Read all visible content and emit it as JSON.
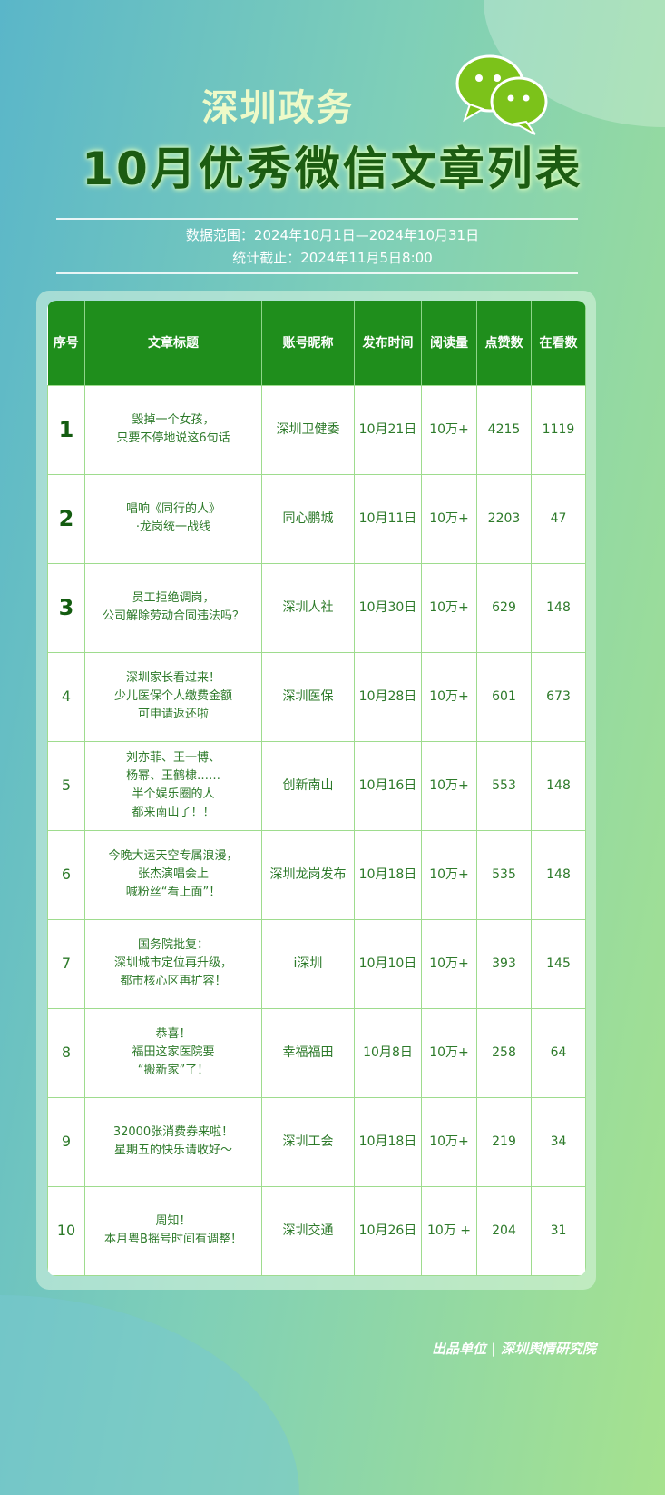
{
  "header": {
    "brand": "深圳政务",
    "title": "10月优秀微信文章列表",
    "range": "数据范围：2024年10月1日—2024年10月31日",
    "cutoff": "统计截止：2024年11月5日8:00",
    "icon": "wechat-icon"
  },
  "colors": {
    "header_bg": "#1f8e1c",
    "cell_text": "#2d7a2a",
    "title_dark": "#1c5c12"
  },
  "table": {
    "columns": [
      "序号",
      "文章标题",
      "账号昵称",
      "发布时间",
      "阅读量",
      "点赞数",
      "在看数"
    ],
    "rows": [
      [
        "1",
        "毁掉一个女孩，\n只要不停地说这6句话",
        "深圳卫健委",
        "10月21日",
        "10万+",
        "4215",
        "1119"
      ],
      [
        "2",
        "唱响《同行的人》\n·龙岗统一战线",
        "同心鹏城",
        "10月11日",
        "10万+",
        "2203",
        "47"
      ],
      [
        "3",
        "员工拒绝调岗，\n公司解除劳动合同违法吗？",
        "深圳人社",
        "10月30日",
        "10万+",
        "629",
        "148"
      ],
      [
        "4",
        "深圳家长看过来！\n少儿医保个人缴费金额\n可申请返还啦",
        "深圳医保",
        "10月28日",
        "10万+",
        "601",
        "673"
      ],
      [
        "5",
        "刘亦菲、王一博、\n杨幂、王鹤棣……\n半个娱乐圈的人\n都来南山了！！",
        "创新南山",
        "10月16日",
        "10万+",
        "553",
        "148"
      ],
      [
        "6",
        "今晚大运天空专属浪漫，\n张杰演唱会上\n喊粉丝“看上面”！",
        "深圳龙岗发布",
        "10月18日",
        "10万+",
        "535",
        "148"
      ],
      [
        "7",
        "国务院批复：\n深圳城市定位再升级，\n都市核心区再扩容！",
        "i深圳",
        "10月10日",
        "10万+",
        "393",
        "145"
      ],
      [
        "8",
        "恭喜！\n福田这家医院要\n“搬新家”了！",
        "幸福福田",
        "10月8日",
        "10万+",
        "258",
        "64"
      ],
      [
        "9",
        "32000张消费券来啦！\n星期五的快乐请收好～",
        "深圳工会",
        "10月18日",
        "10万+",
        "219",
        "34"
      ],
      [
        "10",
        "周知！\n本月粤B摇号时间有调整！",
        "深圳交通",
        "10月26日",
        "10万 +",
        "204",
        "31"
      ]
    ]
  },
  "footer": "出品单位 | 深圳舆情研究院"
}
